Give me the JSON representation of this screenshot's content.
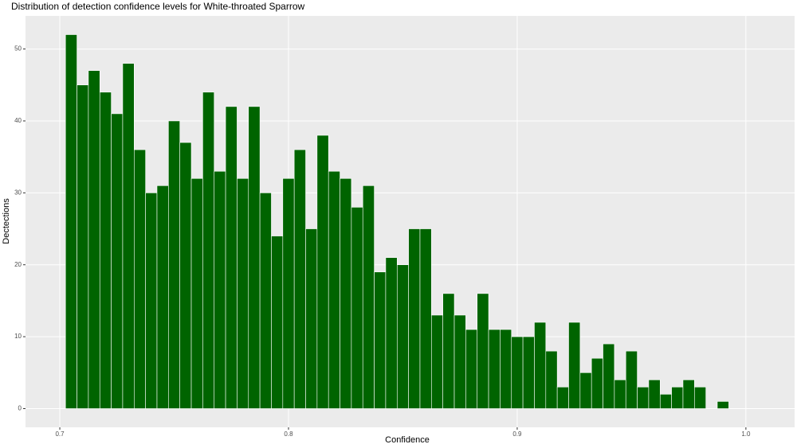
{
  "chart_data": {
    "type": "histogram",
    "title": "Distribution of detection confidence levels for White-throated Sparrow",
    "x_label": "Confidence",
    "y_label": "Dectections",
    "bins": [
      0.7025,
      0.7075,
      0.7125,
      0.7175,
      0.7225,
      0.7275,
      0.7325,
      0.7375,
      0.7425,
      0.7475,
      0.7525,
      0.7575,
      0.7625,
      0.7675,
      0.7725,
      0.7775,
      0.7825,
      0.7875,
      0.7925,
      0.7975,
      0.8025,
      0.8075,
      0.8125,
      0.8175,
      0.8225,
      0.8275,
      0.8325,
      0.8375,
      0.8425,
      0.8475,
      0.8525,
      0.8575,
      0.8625,
      0.8675,
      0.8725,
      0.8775,
      0.8825,
      0.8875,
      0.8925,
      0.8975,
      0.9025,
      0.9075,
      0.9125,
      0.9175,
      0.9225,
      0.9275,
      0.9325,
      0.9375,
      0.9425,
      0.9475,
      0.9525,
      0.9575,
      0.9625,
      0.9675,
      0.9725,
      0.9775,
      0.9825,
      0.9875,
      0.9925
    ],
    "values": [
      52,
      45,
      47,
      44,
      41,
      48,
      36,
      30,
      31,
      40,
      37,
      32,
      44,
      33,
      42,
      32,
      42,
      30,
      24,
      32,
      36,
      25,
      38,
      33,
      32,
      28,
      31,
      19,
      21,
      20,
      25,
      25,
      13,
      16,
      13,
      11,
      16,
      11,
      11,
      10,
      10,
      12,
      8,
      3,
      12,
      5,
      7,
      9,
      4,
      8,
      3,
      4,
      2,
      3,
      4,
      3,
      0,
      1
    ],
    "color": "#006400",
    "xlim": [
      0.685,
      1.0213
    ],
    "ylim": [
      -2.6,
      54.6
    ],
    "xticks": [
      0.7,
      0.8,
      0.9,
      {
        "value": 1.0,
        "label": "1.0"
      }
    ],
    "yticks": [
      0,
      10,
      20,
      30,
      40,
      50
    ],
    "grid": true
  }
}
